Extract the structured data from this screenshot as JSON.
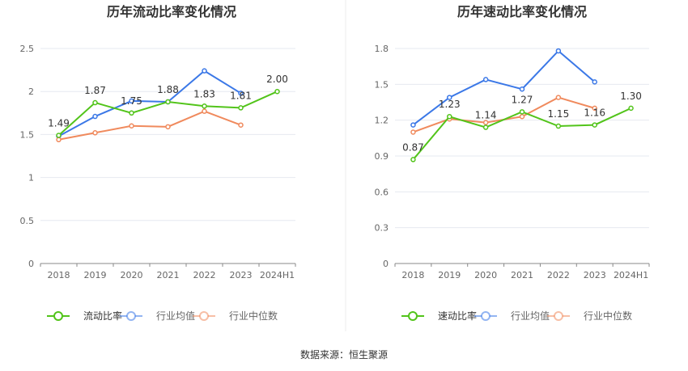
{
  "source_text": "数据来源：恒生聚源",
  "colors": {
    "primary": "#52c41a",
    "average": "#3b78e7",
    "median": "#f08a5d",
    "grid": "#e6e9f0",
    "axis": "#666666",
    "text": "#333333",
    "divider": "#eeeeee"
  },
  "chart_data": [
    {
      "type": "line",
      "title": "历年流动比率变化情况",
      "categories": [
        "2018",
        "2019",
        "2020",
        "2021",
        "2022",
        "2023",
        "2024H1"
      ],
      "ylim": [
        0,
        2.5
      ],
      "yticks": [
        0,
        0.5,
        1,
        1.5,
        2,
        2.5
      ],
      "ytick_labels": [
        "0",
        "0.5",
        "1",
        "1.5",
        "2",
        "2.5"
      ],
      "grid": true,
      "legend_position": "bottom",
      "series": [
        {
          "name": "流动比率",
          "role": "primary",
          "values": [
            1.49,
            1.87,
            1.75,
            1.88,
            1.83,
            1.81,
            2.0
          ],
          "labels": [
            "1.49",
            "1.87",
            "1.75",
            "1.88",
            "1.83",
            "1.81",
            "2.00"
          ]
        },
        {
          "name": "行业均值",
          "role": "average",
          "values": [
            1.48,
            1.71,
            1.89,
            1.88,
            2.24,
            1.98,
            null
          ]
        },
        {
          "name": "行业中位数",
          "role": "median",
          "values": [
            1.44,
            1.52,
            1.6,
            1.59,
            1.77,
            1.61,
            null
          ]
        }
      ]
    },
    {
      "type": "line",
      "title": "历年速动比率变化情况",
      "categories": [
        "2018",
        "2019",
        "2020",
        "2021",
        "2022",
        "2023",
        "2024H1"
      ],
      "ylim": [
        0,
        1.8
      ],
      "yticks": [
        0,
        0.3,
        0.6,
        0.9,
        1.2,
        1.5,
        1.8
      ],
      "ytick_labels": [
        "0",
        "0.3",
        "0.6",
        "0.9",
        "1.2",
        "1.5",
        "1.8"
      ],
      "grid": true,
      "legend_position": "bottom",
      "series": [
        {
          "name": "速动比率",
          "role": "primary",
          "values": [
            0.87,
            1.23,
            1.14,
            1.27,
            1.15,
            1.16,
            1.3
          ],
          "labels": [
            "0.87",
            "1.23",
            "1.14",
            "1.27",
            "1.15",
            "1.16",
            "1.30"
          ]
        },
        {
          "name": "行业均值",
          "role": "average",
          "values": [
            1.16,
            1.39,
            1.54,
            1.46,
            1.78,
            1.52,
            null
          ]
        },
        {
          "name": "行业中位数",
          "role": "median",
          "values": [
            1.1,
            1.21,
            1.18,
            1.23,
            1.39,
            1.3,
            null
          ]
        }
      ]
    }
  ]
}
